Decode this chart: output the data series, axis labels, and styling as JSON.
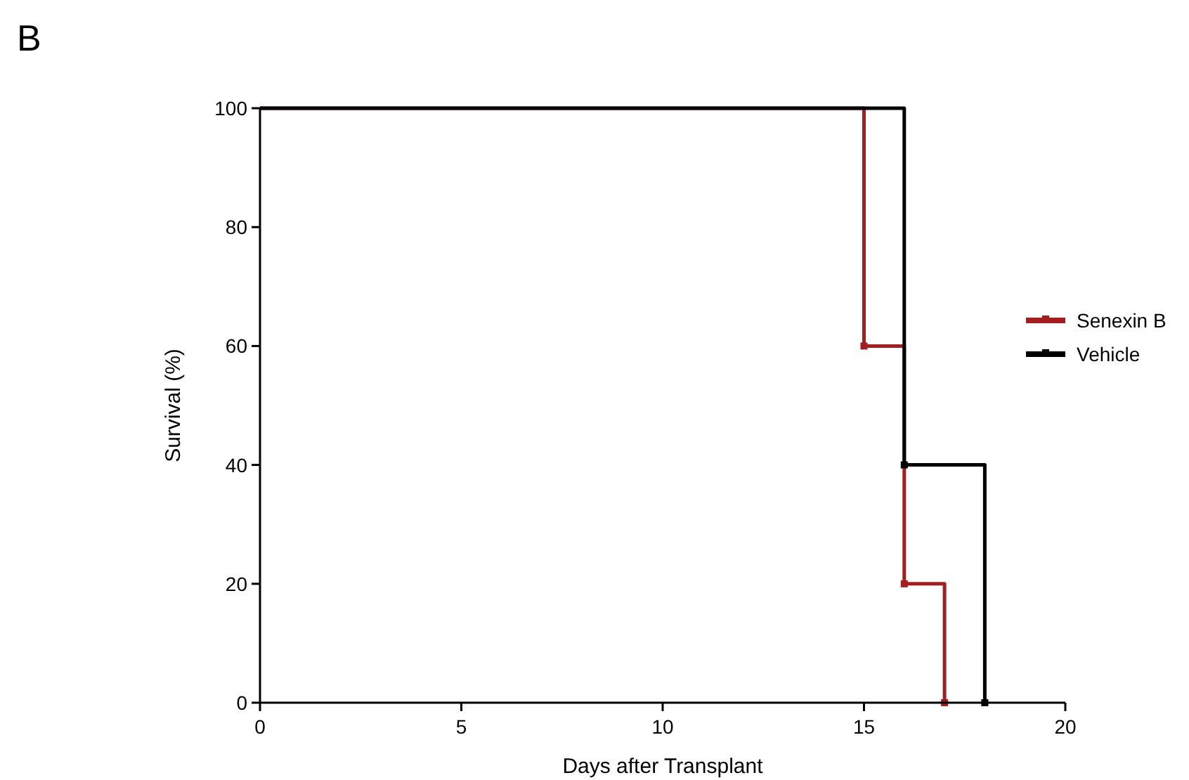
{
  "chart_data": {
    "type": "step",
    "title": "B",
    "xlabel": "Days after Transplant",
    "ylabel": "Survival (%)",
    "series": [
      {
        "name": "Senexin B",
        "color": "#a31f1f",
        "x": [
          0,
          15,
          16,
          17
        ],
        "values": [
          100,
          60,
          20,
          0
        ]
      },
      {
        "name": "Vehicle",
        "color": "#000000",
        "x": [
          0,
          16,
          18
        ],
        "values": [
          100,
          40,
          0
        ]
      }
    ],
    "xlim": [
      0,
      20
    ],
    "xticks": [
      0,
      5,
      10,
      15,
      20
    ],
    "ylim": [
      0,
      100
    ],
    "yticks": [
      0,
      20,
      40,
      60,
      80,
      100
    ],
    "grid": false,
    "legend": "right",
    "marker": "square",
    "line_style": "solid"
  }
}
